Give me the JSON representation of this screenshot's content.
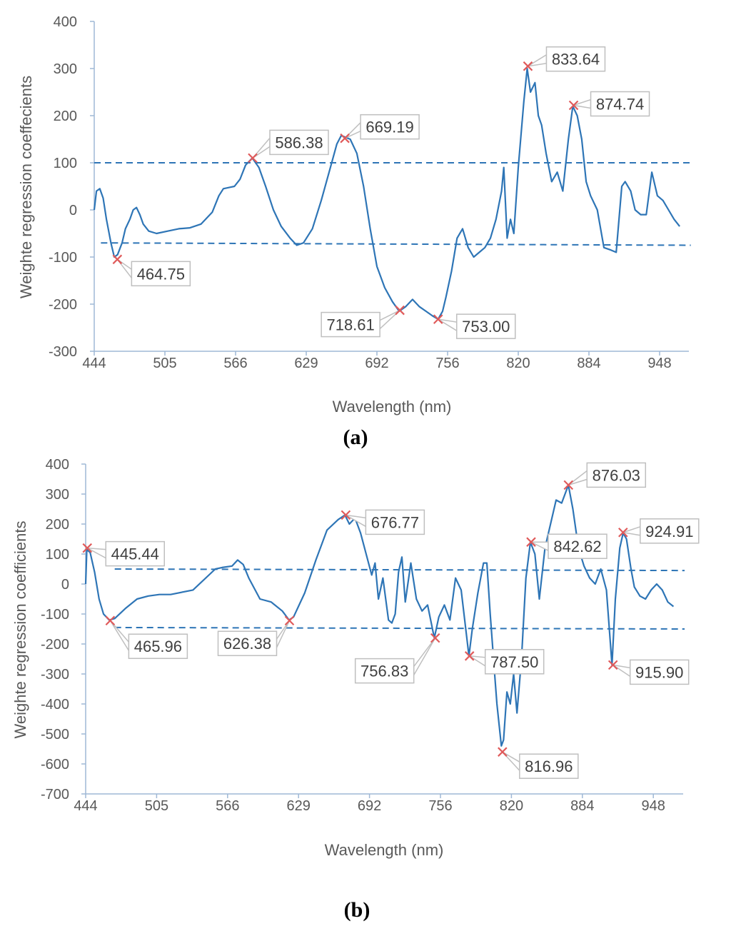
{
  "colors": {
    "line": "#2e75b6",
    "marker": "#e05a5a",
    "axis": "#9fb8d6",
    "text": "#595959",
    "callout_border": "#bfbfbf"
  },
  "chart_data": [
    {
      "type": "line",
      "panel_label": "a",
      "xlabel": "Wavelength (nm)",
      "ylabel": "Weighte regression coeffecients",
      "x_ticks": [
        "444",
        "505",
        "566",
        "629",
        "692",
        "756",
        "820",
        "884",
        "948"
      ],
      "x_range": [
        444,
        981
      ],
      "ylim": [
        -300,
        400
      ],
      "y_ticks": [
        400,
        300,
        200,
        100,
        0,
        -100,
        -200,
        -300
      ],
      "thresholds": [
        {
          "x": [
            444,
            980
          ],
          "y": [
            100,
            100
          ]
        },
        {
          "x": [
            450,
            980
          ],
          "y": [
            -70,
            -75
          ]
        }
      ],
      "series": [
        {
          "name": "coefficients",
          "x": [
            444,
            446,
            449,
            452,
            455,
            459,
            462,
            465,
            469,
            472,
            476,
            479,
            482,
            485,
            488,
            493,
            500,
            510,
            520,
            530,
            540,
            550,
            556,
            560,
            566,
            570,
            575,
            580,
            586,
            592,
            598,
            605,
            612,
            620,
            626,
            632,
            640,
            648,
            655,
            662,
            666,
            669,
            674,
            680,
            686,
            692,
            698,
            705,
            712,
            718,
            724,
            730,
            736,
            742,
            748,
            753,
            757,
            760,
            765,
            770,
            775,
            780,
            785,
            790,
            795,
            800,
            805,
            810,
            812,
            815,
            818,
            821,
            825,
            830,
            833,
            836,
            840,
            843,
            846,
            850,
            855,
            860,
            865,
            870,
            874,
            878,
            882,
            886,
            890,
            896,
            902,
            908,
            913,
            918,
            921,
            926,
            930,
            935,
            940,
            945,
            950,
            955,
            960,
            965,
            970
          ],
          "y": [
            0,
            40,
            45,
            25,
            -20,
            -70,
            -100,
            -95,
            -70,
            -40,
            -20,
            0,
            5,
            -10,
            -30,
            -45,
            -50,
            -45,
            -40,
            -38,
            -30,
            -5,
            30,
            45,
            48,
            50,
            65,
            95,
            110,
            90,
            50,
            0,
            -35,
            -60,
            -75,
            -70,
            -40,
            20,
            80,
            140,
            158,
            155,
            150,
            120,
            50,
            -40,
            -120,
            -165,
            -195,
            -215,
            -205,
            -190,
            -205,
            -215,
            -225,
            -232,
            -215,
            -185,
            -130,
            -60,
            -40,
            -80,
            -100,
            -90,
            -80,
            -60,
            -20,
            40,
            90,
            -60,
            -20,
            -50,
            90,
            230,
            300,
            250,
            270,
            200,
            180,
            120,
            60,
            80,
            40,
            150,
            220,
            200,
            150,
            60,
            30,
            0,
            -80,
            -85,
            -90,
            50,
            60,
            40,
            0,
            -10,
            -10,
            80,
            30,
            20,
            0,
            -20,
            -35
          ]
        }
      ],
      "annotations": [
        {
          "x": 464.75,
          "y": -105,
          "label": "464.75"
        },
        {
          "x": 586.38,
          "y": 110,
          "label": "586.38"
        },
        {
          "x": 669.19,
          "y": 152,
          "label": "669.19"
        },
        {
          "x": 718.61,
          "y": -213,
          "label": "718.61"
        },
        {
          "x": 753.0,
          "y": -232,
          "label": "753.00"
        },
        {
          "x": 833.64,
          "y": 305,
          "label": "833.64"
        },
        {
          "x": 874.74,
          "y": 222,
          "label": "874.74"
        }
      ]
    },
    {
      "type": "line",
      "panel_label": "b",
      "xlabel": "Wavelength (nm)",
      "ylabel": "Weighte regression coefficients",
      "x_ticks": [
        "444",
        "505",
        "566",
        "629",
        "692",
        "756",
        "820",
        "884",
        "948"
      ],
      "x_range": [
        444,
        981
      ],
      "ylim": [
        -700,
        400
      ],
      "y_ticks": [
        400,
        300,
        200,
        100,
        0,
        -100,
        -200,
        -300,
        -400,
        -500,
        -600,
        -700
      ],
      "thresholds": [
        {
          "x": [
            470,
            980
          ],
          "y": [
            50,
            45
          ]
        },
        {
          "x": [
            470,
            980
          ],
          "y": [
            -145,
            -150
          ]
        }
      ],
      "series": [
        {
          "name": "coefficients",
          "x": [
            444,
            445,
            448,
            452,
            456,
            460,
            465,
            470,
            480,
            490,
            500,
            510,
            520,
            540,
            560,
            566,
            575,
            580,
            585,
            590,
            600,
            610,
            620,
            626,
            630,
            640,
            650,
            660,
            670,
            676,
            680,
            685,
            690,
            695,
            700,
            703,
            706,
            710,
            715,
            718,
            721,
            724,
            727,
            730,
            735,
            740,
            745,
            750,
            756,
            760,
            765,
            770,
            775,
            780,
            787,
            790,
            795,
            800,
            803,
            806,
            810,
            812,
            816,
            818,
            821,
            824,
            827,
            830,
            834,
            838,
            842,
            846,
            850,
            855,
            860,
            865,
            870,
            876,
            880,
            885,
            890,
            895,
            900,
            905,
            910,
            915,
            918,
            922,
            925,
            928,
            932,
            935,
            940,
            945,
            950,
            955,
            960,
            965,
            970
          ],
          "y": [
            0,
            115,
            105,
            40,
            -50,
            -100,
            -120,
            -115,
            -80,
            -50,
            -40,
            -35,
            -35,
            -20,
            50,
            55,
            60,
            80,
            65,
            20,
            -50,
            -60,
            -90,
            -120,
            -110,
            -30,
            80,
            180,
            215,
            230,
            200,
            220,
            170,
            100,
            30,
            70,
            -50,
            20,
            -120,
            -130,
            -100,
            40,
            90,
            -60,
            70,
            -50,
            -90,
            -70,
            -180,
            -110,
            -70,
            -120,
            20,
            -20,
            -240,
            -150,
            -30,
            70,
            70,
            -100,
            -300,
            -400,
            -540,
            -520,
            -360,
            -400,
            -300,
            -430,
            -250,
            20,
            140,
            100,
            -50,
            120,
            200,
            280,
            270,
            330,
            250,
            120,
            60,
            20,
            0,
            50,
            -20,
            -270,
            -50,
            120,
            170,
            150,
            50,
            -10,
            -40,
            -50,
            -20,
            0,
            -20,
            -60,
            -75
          ]
        }
      ],
      "annotations": [
        {
          "x": 445.44,
          "y": 120,
          "label": "445.44"
        },
        {
          "x": 465.96,
          "y": -122,
          "label": "465.96"
        },
        {
          "x": 626.38,
          "y": -122,
          "label": "626.38"
        },
        {
          "x": 676.77,
          "y": 230,
          "label": "676.77"
        },
        {
          "x": 756.83,
          "y": -180,
          "label": "756.83"
        },
        {
          "x": 787.5,
          "y": -240,
          "label": "787.50"
        },
        {
          "x": 816.96,
          "y": -560,
          "label": "816.96"
        },
        {
          "x": 842.62,
          "y": 140,
          "label": "842.62"
        },
        {
          "x": 876.03,
          "y": 330,
          "label": "876.03"
        },
        {
          "x": 915.9,
          "y": -270,
          "label": "915.90"
        },
        {
          "x": 924.91,
          "y": 172,
          "label": "924.91"
        }
      ]
    }
  ]
}
